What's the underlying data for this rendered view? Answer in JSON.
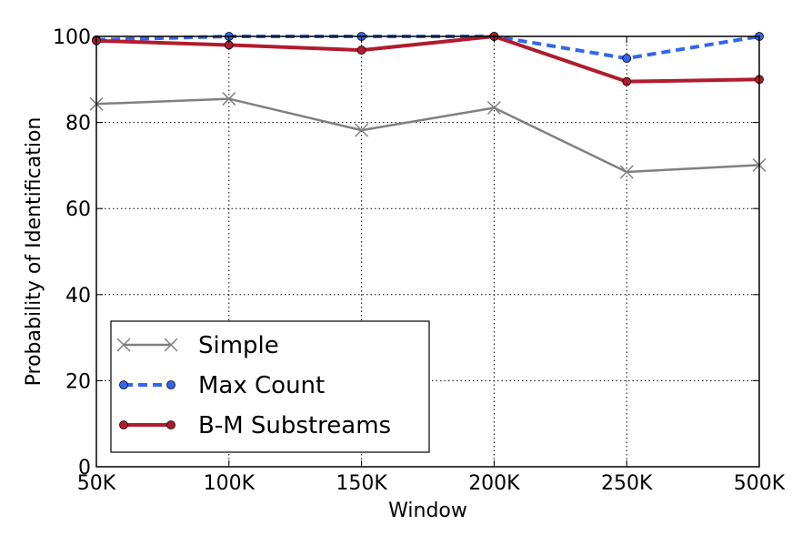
{
  "chart_data": {
    "type": "line",
    "title": "",
    "xlabel": "Window",
    "ylabel": "Probability of Identification",
    "categories": [
      "50K",
      "100K",
      "150K",
      "200K",
      "250K",
      "500K"
    ],
    "ylim": [
      0,
      100
    ],
    "yticks": [
      "0",
      "20",
      "40",
      "60",
      "80",
      "100"
    ],
    "grid": true,
    "legend_position": "lower-left",
    "series": [
      {
        "name": "Simple",
        "values": [
          84.3,
          85.5,
          78.2,
          83.4,
          68.5,
          70.1
        ],
        "color": "#808080",
        "marker": "x",
        "line_style": "solid"
      },
      {
        "name": "Max Count",
        "values": [
          99.2,
          100,
          100,
          100,
          94.9,
          100
        ],
        "color": "#3366ee",
        "marker": "o",
        "line_style": "dashed"
      },
      {
        "name": "B-M Substreams",
        "values": [
          99.0,
          98.0,
          96.8,
          100,
          89.5,
          90.0
        ],
        "color": "#b01c2e",
        "marker": "o",
        "line_style": "solid"
      }
    ]
  }
}
